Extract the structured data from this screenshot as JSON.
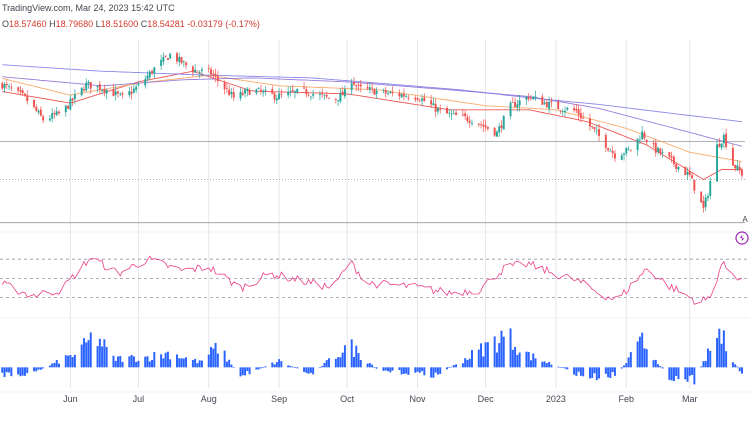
{
  "header": {
    "source": "TradingView.com, Mar 24, 2023 15:42 UTC",
    "ohlc": {
      "open_label": "O",
      "open": "18.57460",
      "high_label": "H",
      "high": "18.79680",
      "low_label": "L",
      "low": "18.51600",
      "close_label": "C",
      "close": "18.54281",
      "change": "-0.03179 (-0.17%)"
    }
  },
  "colors": {
    "up": "#26a69a",
    "down": "#ef5350",
    "ema_fast": "#ef4444",
    "ema_mid": "#f7a35c",
    "sma_slow": "#8f6fd6",
    "sma_long": "#7b7be6",
    "rsi": "#ea3f88",
    "macd_hist": "#2962ff",
    "grid": "#e3e5ea",
    "axis_text": "#434651"
  },
  "watermark": {
    "icon": "tradingview-logo-icon",
    "corner_letter": "A"
  },
  "x_axis_labels": [
    "Jun",
    "Jul",
    "Aug",
    "Sep",
    "Oct",
    "Nov",
    "Dec",
    "2023",
    "Feb",
    "Mar"
  ],
  "chart_data": {
    "type": "candlestick",
    "instrument_units": "price",
    "x_range": [
      "2022-05-01",
      "2023-03-24"
    ],
    "x_ticks": [
      {
        "label": "Jun",
        "date": "2022-06-01"
      },
      {
        "label": "Jul",
        "date": "2022-07-01"
      },
      {
        "label": "Aug",
        "date": "2022-08-01"
      },
      {
        "label": "Sep",
        "date": "2022-09-01"
      },
      {
        "label": "Oct",
        "date": "2022-10-01"
      },
      {
        "label": "Nov",
        "date": "2022-11-01"
      },
      {
        "label": "Dec",
        "date": "2022-12-01"
      },
      {
        "label": "2023",
        "date": "2023-01-01"
      },
      {
        "label": "Feb",
        "date": "2023-02-01"
      },
      {
        "label": "Mar",
        "date": "2023-03-01"
      }
    ],
    "price_ylim": [
      17.75,
      20.55
    ],
    "price_close_anchors": [
      [
        "2022-05-01",
        19.9
      ],
      [
        "2022-05-12",
        19.68
      ],
      [
        "2022-05-20",
        19.35
      ],
      [
        "2022-05-28",
        19.45
      ],
      [
        "2022-06-08",
        19.88
      ],
      [
        "2022-06-16",
        19.82
      ],
      [
        "2022-06-24",
        19.68
      ],
      [
        "2022-07-01",
        19.85
      ],
      [
        "2022-07-08",
        20.12
      ],
      [
        "2022-07-15",
        20.33
      ],
      [
        "2022-07-25",
        20.1
      ],
      [
        "2022-08-02",
        20.05
      ],
      [
        "2022-08-12",
        19.68
      ],
      [
        "2022-08-20",
        19.8
      ],
      [
        "2022-08-31",
        19.7
      ],
      [
        "2022-09-12",
        19.78
      ],
      [
        "2022-09-25",
        19.65
      ],
      [
        "2022-09-30",
        19.75
      ],
      [
        "2022-10-02",
        20.0
      ],
      [
        "2022-10-06",
        19.82
      ],
      [
        "2022-10-20",
        19.74
      ],
      [
        "2022-11-01",
        19.7
      ],
      [
        "2022-11-12",
        19.45
      ],
      [
        "2022-11-25",
        19.35
      ],
      [
        "2022-12-06",
        19.15
      ],
      [
        "2022-12-12",
        19.55
      ],
      [
        "2022-12-20",
        19.7
      ],
      [
        "2022-12-31",
        19.55
      ],
      [
        "2023-01-10",
        19.48
      ],
      [
        "2023-01-20",
        19.1
      ],
      [
        "2023-01-27",
        18.82
      ],
      [
        "2023-02-03",
        18.9
      ],
      [
        "2023-02-08",
        19.15
      ],
      [
        "2023-02-12",
        18.95
      ],
      [
        "2023-02-20",
        18.75
      ],
      [
        "2023-03-01",
        18.5
      ],
      [
        "2023-03-07",
        18.0
      ],
      [
        "2023-03-09",
        18.25
      ],
      [
        "2023-03-13",
        18.95
      ],
      [
        "2023-03-16",
        19.1
      ],
      [
        "2023-03-20",
        18.68
      ],
      [
        "2023-03-24",
        18.54
      ]
    ],
    "series": [
      {
        "type": "ema_fast",
        "anchors": [
          [
            "2022-05-01",
            19.78
          ],
          [
            "2022-06-01",
            19.6
          ],
          [
            "2022-07-01",
            19.92
          ],
          [
            "2022-07-25",
            20.08
          ],
          [
            "2022-08-20",
            19.78
          ],
          [
            "2022-10-01",
            19.74
          ],
          [
            "2022-11-15",
            19.5
          ],
          [
            "2022-12-20",
            19.5
          ],
          [
            "2023-01-15",
            19.32
          ],
          [
            "2023-02-10",
            18.97
          ],
          [
            "2023-03-07",
            18.45
          ],
          [
            "2023-03-15",
            18.6
          ],
          [
            "2023-03-24",
            18.6
          ]
        ]
      },
      {
        "type": "ema_mid",
        "anchors": [
          [
            "2022-05-01",
            19.98
          ],
          [
            "2022-06-01",
            19.72
          ],
          [
            "2022-07-01",
            19.9
          ],
          [
            "2022-08-01",
            20.02
          ],
          [
            "2022-09-01",
            19.86
          ],
          [
            "2022-10-15",
            19.8
          ],
          [
            "2022-12-01",
            19.56
          ],
          [
            "2023-01-01",
            19.5
          ],
          [
            "2023-02-01",
            19.22
          ],
          [
            "2023-03-01",
            18.86
          ],
          [
            "2023-03-24",
            18.72
          ]
        ]
      },
      {
        "type": "sma_slow",
        "anchors": [
          [
            "2022-05-01",
            20.0
          ],
          [
            "2022-06-15",
            19.86
          ],
          [
            "2022-07-20",
            19.95
          ],
          [
            "2022-08-20",
            19.98
          ],
          [
            "2022-10-01",
            19.92
          ],
          [
            "2022-11-15",
            19.8
          ],
          [
            "2022-12-20",
            19.7
          ],
          [
            "2023-01-20",
            19.52
          ],
          [
            "2023-02-20",
            19.24
          ],
          [
            "2023-03-24",
            18.95
          ]
        ]
      },
      {
        "type": "sma_long",
        "anchors": [
          [
            "2022-05-01",
            20.18
          ],
          [
            "2022-06-15",
            20.08
          ],
          [
            "2022-08-01",
            20.02
          ],
          [
            "2022-09-15",
            19.98
          ],
          [
            "2022-10-15",
            19.9
          ],
          [
            "2022-11-20",
            19.8
          ],
          [
            "2022-12-20",
            19.68
          ],
          [
            "2023-01-20",
            19.58
          ],
          [
            "2023-02-20",
            19.45
          ],
          [
            "2023-03-24",
            19.32
          ]
        ]
      }
    ],
    "price_reference_lines": [
      {
        "price": 19.02,
        "style": "solid"
      },
      {
        "price": 18.45,
        "style": "dotted"
      },
      {
        "price": 17.8,
        "style": "solid"
      }
    ],
    "rsi_ylim": [
      15,
      90
    ],
    "rsi_reference_lines": [
      70,
      50,
      30
    ],
    "rsi_anchors": [
      [
        "2022-05-01",
        45
      ],
      [
        "2022-05-15",
        32
      ],
      [
        "2022-05-28",
        38
      ],
      [
        "2022-06-10",
        72
      ],
      [
        "2022-06-22",
        55
      ],
      [
        "2022-07-05",
        70
      ],
      [
        "2022-07-20",
        58
      ],
      [
        "2022-08-01",
        62
      ],
      [
        "2022-08-15",
        40
      ],
      [
        "2022-08-28",
        55
      ],
      [
        "2022-09-10",
        48
      ],
      [
        "2022-09-25",
        40
      ],
      [
        "2022-10-02",
        68
      ],
      [
        "2022-10-10",
        45
      ],
      [
        "2022-10-28",
        42
      ],
      [
        "2022-11-15",
        35
      ],
      [
        "2022-11-28",
        38
      ],
      [
        "2022-12-10",
        62
      ],
      [
        "2022-12-20",
        65
      ],
      [
        "2022-12-31",
        55
      ],
      [
        "2023-01-10",
        48
      ],
      [
        "2023-01-20",
        35
      ],
      [
        "2023-01-28",
        27
      ],
      [
        "2023-02-10",
        60
      ],
      [
        "2023-02-20",
        42
      ],
      [
        "2023-03-05",
        25
      ],
      [
        "2023-03-10",
        30
      ],
      [
        "2023-03-15",
        65
      ],
      [
        "2023-03-24",
        48
      ]
    ],
    "hist_ylim": [
      -0.5,
      1.0
    ],
    "hist_anchors": [
      [
        "2022-05-01",
        -0.2
      ],
      [
        "2022-05-15",
        -0.18
      ],
      [
        "2022-06-05",
        0.45
      ],
      [
        "2022-06-12",
        0.95
      ],
      [
        "2022-06-20",
        0.25
      ],
      [
        "2022-07-05",
        0.3
      ],
      [
        "2022-07-15",
        0.42
      ],
      [
        "2022-07-28",
        0.15
      ],
      [
        "2022-08-05",
        0.6
      ],
      [
        "2022-08-15",
        -0.25
      ],
      [
        "2022-09-01",
        0.18
      ],
      [
        "2022-09-15",
        -0.2
      ],
      [
        "2022-10-02",
        0.65
      ],
      [
        "2022-10-15",
        -0.1
      ],
      [
        "2022-11-10",
        -0.22
      ],
      [
        "2022-12-10",
        0.95
      ],
      [
        "2022-12-20",
        0.35
      ],
      [
        "2023-01-15",
        -0.3
      ],
      [
        "2023-01-28",
        -0.2
      ],
      [
        "2023-02-08",
        0.75
      ],
      [
        "2023-02-20",
        -0.28
      ],
      [
        "2023-03-03",
        -0.35
      ],
      [
        "2023-03-14",
        1.0
      ],
      [
        "2023-03-24",
        -0.22
      ]
    ]
  }
}
